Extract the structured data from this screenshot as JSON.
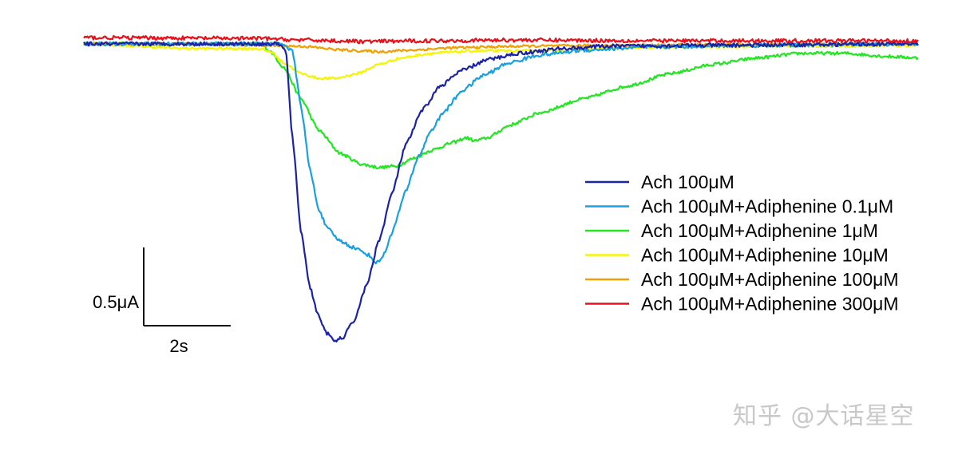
{
  "chart_data": {
    "type": "line",
    "title": "",
    "xlabel": "",
    "ylabel": "",
    "x_unit": "s",
    "y_unit": "µA",
    "x_range": [
      0,
      19.2
    ],
    "y_range": [
      -2.05,
      0.12
    ],
    "grid": false,
    "legend_position": "right",
    "scale_bar": {
      "y_label": "0.5μA",
      "y_value": 0.5,
      "x_label": "2s",
      "x_value": 2
    },
    "series": [
      {
        "name": "Ach 100μM",
        "color": "#1a22a8",
        "noise": 0.012,
        "points": [
          [
            0,
            0
          ],
          [
            4.5,
            0
          ],
          [
            4.65,
            -0.05
          ],
          [
            4.8,
            -0.6
          ],
          [
            5.0,
            -1.2
          ],
          [
            5.2,
            -1.55
          ],
          [
            5.4,
            -1.74
          ],
          [
            5.6,
            -1.85
          ],
          [
            5.75,
            -1.9
          ],
          [
            5.95,
            -1.88
          ],
          [
            6.2,
            -1.78
          ],
          [
            6.5,
            -1.55
          ],
          [
            6.8,
            -1.25
          ],
          [
            7.1,
            -0.95
          ],
          [
            7.4,
            -0.65
          ],
          [
            7.8,
            -0.42
          ],
          [
            8.2,
            -0.27
          ],
          [
            8.7,
            -0.17
          ],
          [
            9.3,
            -0.1
          ],
          [
            10.0,
            -0.06
          ],
          [
            11,
            -0.03
          ],
          [
            12,
            -0.015
          ],
          [
            14,
            -0.01
          ],
          [
            19.2,
            0
          ]
        ]
      },
      {
        "name": "Ach 100μM+Adiphenine 0.1μM",
        "color": "#1a9fe0",
        "noise": 0.012,
        "points": [
          [
            0,
            0
          ],
          [
            4.6,
            0
          ],
          [
            4.8,
            -0.05
          ],
          [
            5.0,
            -0.4
          ],
          [
            5.2,
            -0.8
          ],
          [
            5.4,
            -1.05
          ],
          [
            5.6,
            -1.18
          ],
          [
            5.9,
            -1.26
          ],
          [
            6.2,
            -1.3
          ],
          [
            6.5,
            -1.34
          ],
          [
            6.75,
            -1.4
          ],
          [
            6.9,
            -1.35
          ],
          [
            7.1,
            -1.2
          ],
          [
            7.4,
            -0.95
          ],
          [
            7.7,
            -0.72
          ],
          [
            8.0,
            -0.55
          ],
          [
            8.3,
            -0.43
          ],
          [
            8.7,
            -0.3
          ],
          [
            9.2,
            -0.2
          ],
          [
            9.8,
            -0.12
          ],
          [
            10.5,
            -0.07
          ],
          [
            11.5,
            -0.04
          ],
          [
            13,
            -0.02
          ],
          [
            15,
            -0.01
          ],
          [
            19.2,
            0
          ]
        ]
      },
      {
        "name": "Ach 100μM+Adiphenine 1μM",
        "color": "#22e622",
        "noise": 0.01,
        "points": [
          [
            0,
            0
          ],
          [
            4.1,
            0
          ],
          [
            4.3,
            -0.05
          ],
          [
            4.6,
            -0.15
          ],
          [
            5.0,
            -0.35
          ],
          [
            5.4,
            -0.55
          ],
          [
            5.9,
            -0.7
          ],
          [
            6.4,
            -0.77
          ],
          [
            6.8,
            -0.79
          ],
          [
            7.2,
            -0.78
          ],
          [
            7.6,
            -0.73
          ],
          [
            8.0,
            -0.68
          ],
          [
            8.5,
            -0.63
          ],
          [
            8.8,
            -0.6
          ],
          [
            9.0,
            -0.62
          ],
          [
            9.3,
            -0.6
          ],
          [
            9.8,
            -0.52
          ],
          [
            10.5,
            -0.44
          ],
          [
            11.5,
            -0.35
          ],
          [
            12.5,
            -0.27
          ],
          [
            13.5,
            -0.19
          ],
          [
            14.5,
            -0.13
          ],
          [
            15.5,
            -0.09
          ],
          [
            16.5,
            -0.06
          ],
          [
            17.5,
            -0.06
          ],
          [
            18.5,
            -0.08
          ],
          [
            19.2,
            -0.09
          ]
        ]
      },
      {
        "name": "Ach 100μM+Adiphenine 10μM",
        "color": "#f5f500",
        "noise": 0.008,
        "points": [
          [
            0,
            0
          ],
          [
            2.5,
            -0.03
          ],
          [
            4.0,
            -0.03
          ],
          [
            4.3,
            -0.05
          ],
          [
            4.6,
            -0.12
          ],
          [
            5.0,
            -0.19
          ],
          [
            5.4,
            -0.22
          ],
          [
            5.8,
            -0.22
          ],
          [
            6.3,
            -0.19
          ],
          [
            6.8,
            -0.13
          ],
          [
            7.3,
            -0.09
          ],
          [
            8,
            -0.06
          ],
          [
            9,
            -0.045
          ],
          [
            10,
            -0.045
          ],
          [
            11,
            -0.04
          ],
          [
            12,
            -0.03
          ],
          [
            14,
            -0.02
          ],
          [
            16,
            -0.015
          ],
          [
            19.2,
            -0.01
          ]
        ]
      },
      {
        "name": "Ach 100μM+Adiphenine 100μM",
        "color": "#f0a000",
        "noise": 0.008,
        "points": [
          [
            0,
            0
          ],
          [
            2.5,
            0
          ],
          [
            3.5,
            -0.005
          ],
          [
            5.0,
            -0.015
          ],
          [
            6.0,
            -0.04
          ],
          [
            6.8,
            -0.05
          ],
          [
            7.5,
            -0.04
          ],
          [
            8.5,
            -0.025
          ],
          [
            10,
            -0.015
          ],
          [
            12,
            -0.01
          ],
          [
            15,
            -0.005
          ],
          [
            19.2,
            0
          ]
        ]
      },
      {
        "name": "Ach 100μM+Adiphenine 300μM",
        "color": "#e8101a",
        "noise": 0.012,
        "points": [
          [
            0,
            0.04
          ],
          [
            4,
            0.035
          ],
          [
            5,
            0.025
          ],
          [
            6.5,
            0.015
          ],
          [
            8,
            0.02
          ],
          [
            10,
            0.025
          ],
          [
            13,
            0.02
          ],
          [
            16,
            0.02
          ],
          [
            19.2,
            0.02
          ]
        ]
      }
    ]
  },
  "watermark": "知乎 @大话星空"
}
